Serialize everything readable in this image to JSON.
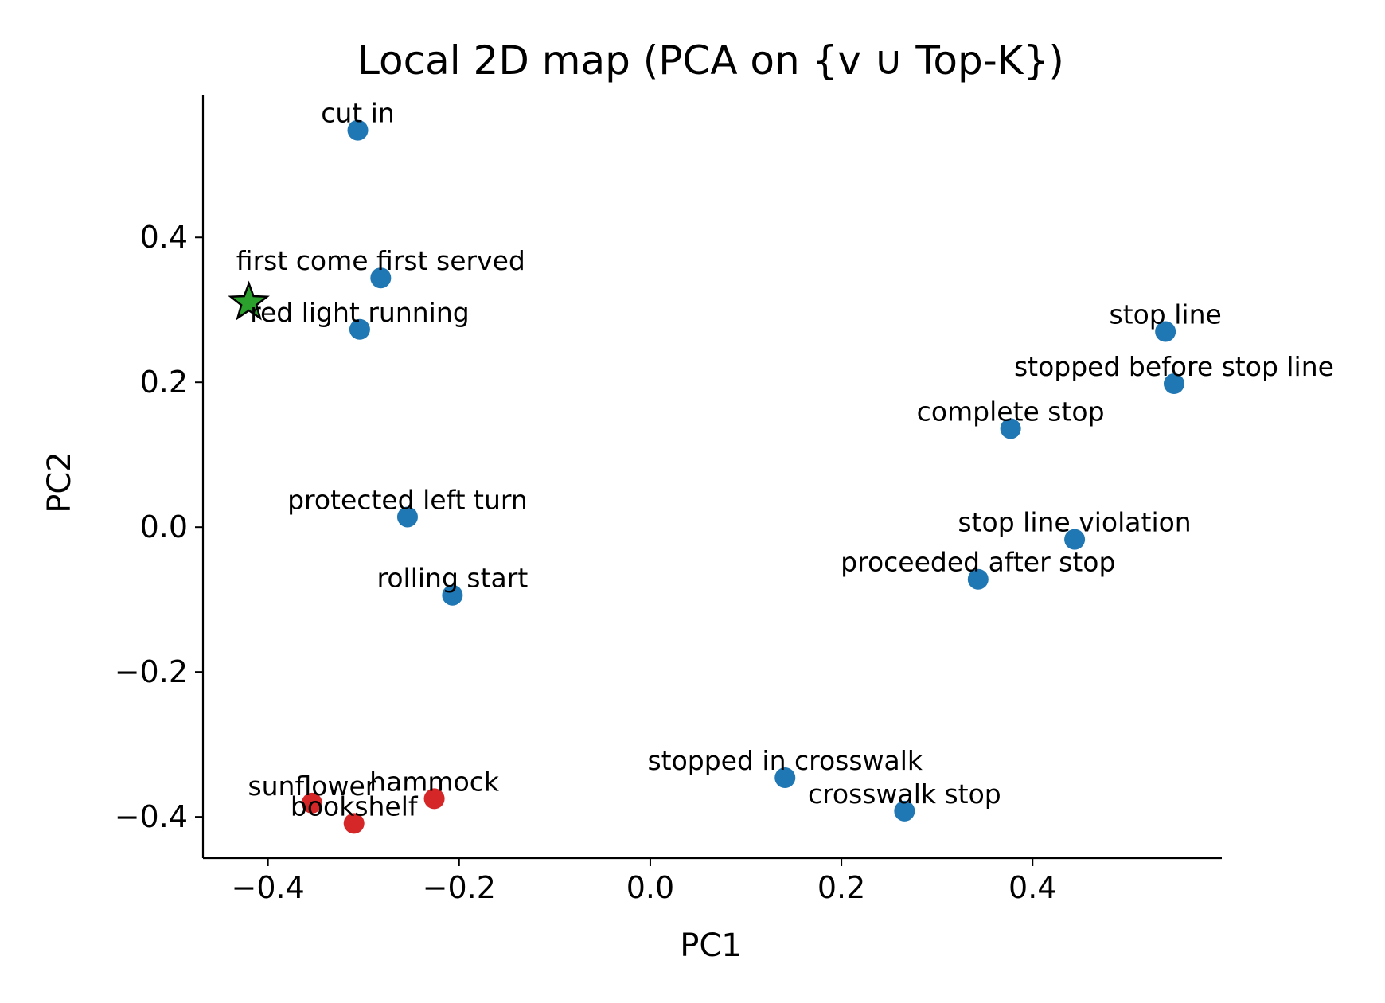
{
  "chart_data": {
    "type": "scatter",
    "title": "Local 2D map (PCA on {v ∪ Top-K})",
    "xlabel": "PC1",
    "ylabel": "PC2",
    "xlim": [
      -0.468,
      0.598
    ],
    "ylim": [
      -0.457,
      0.597
    ],
    "xticks": [
      -0.4,
      -0.2,
      0.0,
      0.2,
      0.4
    ],
    "xtick_labels": [
      "−0.4",
      "−0.2",
      "0.0",
      "0.2",
      "0.4"
    ],
    "yticks": [
      -0.4,
      -0.2,
      0.0,
      0.2,
      0.4
    ],
    "ytick_labels": [
      "−0.4",
      "−0.2",
      "0.0",
      "0.2",
      "0.4"
    ],
    "grid": false,
    "spines": "left-bottom",
    "colors": {
      "related": "#1f77b4",
      "unrelated": "#d62728",
      "query": "#2ca02c"
    },
    "query_point": {
      "x": -0.42,
      "y": 0.31,
      "marker": "star"
    },
    "points": [
      {
        "label": "cut in",
        "x": -0.306,
        "y": 0.548,
        "group": "related"
      },
      {
        "label": "first come first served",
        "x": -0.282,
        "y": 0.344,
        "group": "related"
      },
      {
        "label": "red light running",
        "x": -0.304,
        "y": 0.273,
        "group": "related"
      },
      {
        "label": "protected left turn",
        "x": -0.254,
        "y": 0.014,
        "group": "related"
      },
      {
        "label": "rolling start",
        "x": -0.207,
        "y": -0.094,
        "group": "related"
      },
      {
        "label": "stop line",
        "x": 0.539,
        "y": 0.27,
        "group": "related"
      },
      {
        "label": "stopped before stop line",
        "x": 0.548,
        "y": 0.198,
        "group": "related"
      },
      {
        "label": "complete stop",
        "x": 0.377,
        "y": 0.136,
        "group": "related"
      },
      {
        "label": "stop line violation",
        "x": 0.444,
        "y": -0.017,
        "group": "related"
      },
      {
        "label": "proceeded after stop",
        "x": 0.343,
        "y": -0.072,
        "group": "related"
      },
      {
        "label": "stopped in crosswalk",
        "x": 0.141,
        "y": -0.346,
        "group": "related"
      },
      {
        "label": "crosswalk stop",
        "x": 0.266,
        "y": -0.392,
        "group": "related"
      },
      {
        "label": "sunflower",
        "x": -0.354,
        "y": -0.381,
        "group": "unrelated"
      },
      {
        "label": "hammock",
        "x": -0.226,
        "y": -0.375,
        "group": "unrelated"
      },
      {
        "label": "bookshelf",
        "x": -0.31,
        "y": -0.409,
        "group": "unrelated"
      }
    ]
  }
}
